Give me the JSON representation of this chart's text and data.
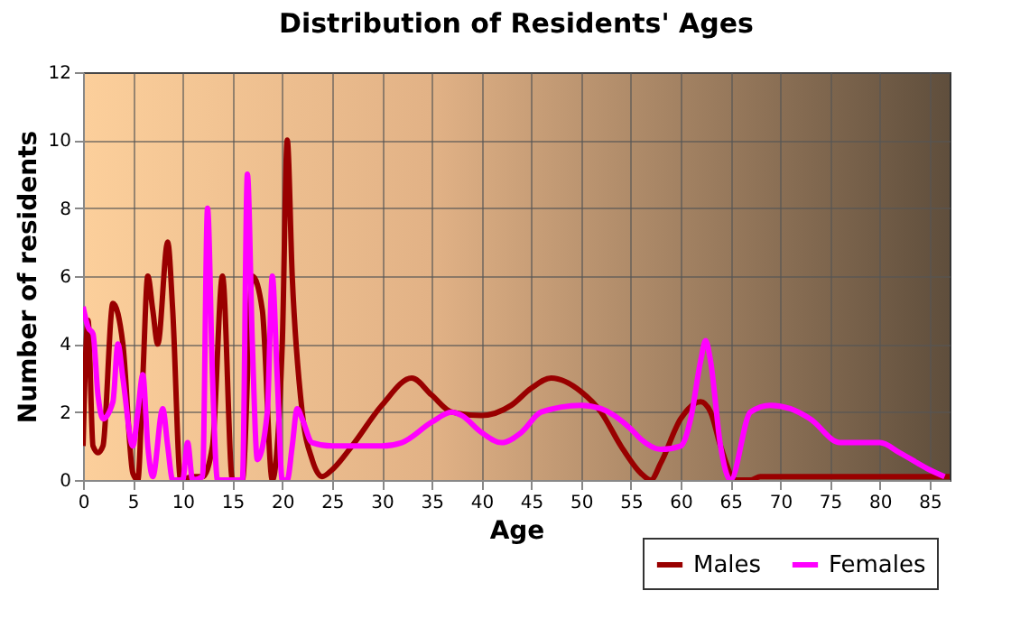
{
  "chart_data": {
    "type": "line",
    "title": "Distribution of Residents' Ages",
    "xlabel": "Age",
    "ylabel": "Number of residents",
    "xlim": [
      0,
      87
    ],
    "xticks": [
      0,
      5,
      10,
      15,
      20,
      25,
      30,
      35,
      40,
      45,
      50,
      55,
      60,
      65,
      70,
      75,
      80,
      85
    ],
    "ylim": [
      0,
      12
    ],
    "yticks": [
      0,
      2,
      4,
      6,
      8,
      10,
      12
    ],
    "grid": true,
    "legend": "bottom right",
    "series": [
      {
        "name": "Males",
        "color": "#990000",
        "x": [
          0,
          0.5,
          1,
          1.5,
          2,
          3,
          4,
          5,
          5.5,
          6,
          6.5,
          7,
          7.5,
          8.5,
          9,
          9.8,
          11,
          12,
          13,
          14,
          15,
          16,
          17,
          18,
          19,
          20,
          20.5,
          21,
          22,
          23,
          24,
          25,
          27,
          30,
          33,
          35,
          37,
          40,
          43,
          45,
          47,
          50,
          52,
          54,
          56,
          57,
          58,
          60,
          62,
          63,
          64,
          65.5,
          67,
          68,
          87
        ],
        "values": [
          1,
          4.7,
          1,
          0.8,
          1,
          5.2,
          4,
          0.2,
          0,
          3,
          6,
          5,
          4,
          7,
          5,
          0,
          0.1,
          0.1,
          1,
          6,
          0,
          0,
          6,
          5,
          0,
          4,
          10,
          6,
          2,
          0.6,
          0.1,
          0.3,
          1,
          2.2,
          3,
          2.5,
          2,
          1.9,
          2.2,
          2.7,
          3,
          2.6,
          2,
          1,
          0.2,
          0,
          0.5,
          1.8,
          2.3,
          2,
          1,
          0,
          0,
          0.1,
          0.1
        ]
      },
      {
        "name": "Females",
        "color": "#ff00ff",
        "x": [
          0,
          0.5,
          1,
          1.5,
          2,
          3,
          3.5,
          4,
          5,
          5.5,
          6,
          6.5,
          7,
          8,
          8.5,
          9,
          10,
          10.5,
          11,
          12,
          12.5,
          13,
          13.5,
          15,
          16,
          16.5,
          17,
          17.5,
          18.5,
          19,
          19.5,
          20,
          20.5,
          21,
          21.5,
          22,
          23,
          25,
          30,
          32,
          35,
          37,
          38,
          40,
          42,
          44,
          46,
          50,
          52,
          55,
          56,
          58,
          60,
          61,
          62,
          62.5,
          63,
          64,
          65,
          67,
          69,
          71,
          73,
          76,
          78,
          80,
          82,
          85,
          86.5
        ],
        "values": [
          5.1,
          4.5,
          4.3,
          2.5,
          1.8,
          2.3,
          4,
          3,
          1,
          2,
          3.1,
          1,
          0.1,
          2.1,
          1,
          0,
          0,
          1.1,
          0,
          0.1,
          8,
          3,
          0,
          0,
          0,
          9,
          4,
          0.6,
          2,
          6,
          3,
          0,
          0,
          1,
          2.1,
          1.8,
          1.1,
          1,
          1,
          1.1,
          1.7,
          2,
          1.9,
          1.4,
          1.1,
          1.4,
          2,
          2.2,
          2.1,
          1.5,
          1.2,
          0.9,
          1,
          1.8,
          3.5,
          4.1,
          3.5,
          1,
          0,
          2,
          2.2,
          2.1,
          1.8,
          1.1,
          1.1,
          1.1,
          0.8,
          0.3,
          0.1
        ]
      }
    ]
  }
}
